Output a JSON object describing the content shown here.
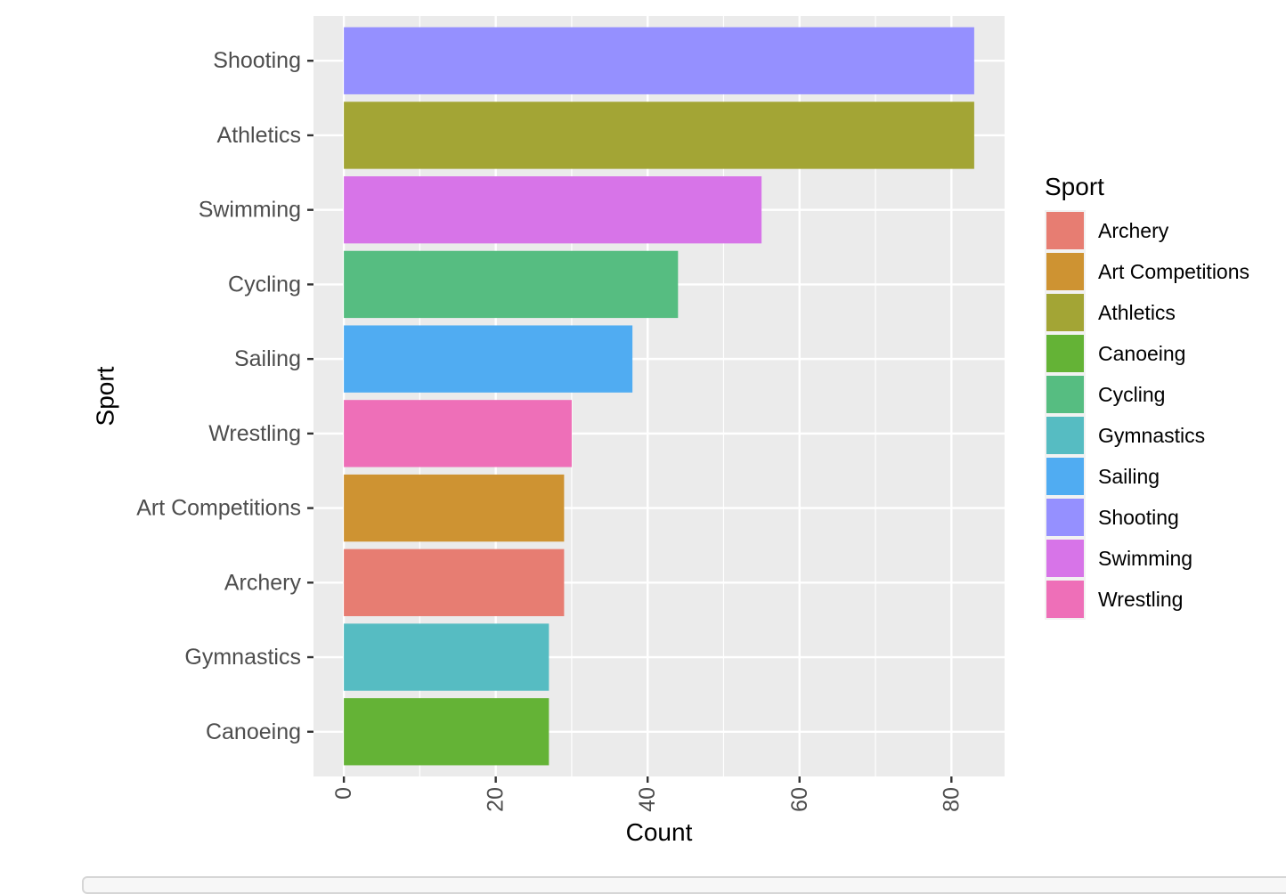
{
  "chart_data": {
    "type": "bar",
    "orientation": "horizontal",
    "categories": [
      "Canoeing",
      "Gymnastics",
      "Archery",
      "Art Competitions",
      "Wrestling",
      "Sailing",
      "Cycling",
      "Swimming",
      "Athletics",
      "Shooting"
    ],
    "values": [
      27,
      27,
      29,
      29,
      30,
      38,
      44,
      55,
      83,
      83
    ],
    "colors": [
      "#64B336",
      "#56BCC2",
      "#E77D72",
      "#CE9332",
      "#EE6FB8",
      "#50ACF2",
      "#56BD81",
      "#D774E8",
      "#A3A535",
      "#9590FF"
    ],
    "xlabel": "Count",
    "ylabel": "Sport",
    "xlim": [
      -4,
      87
    ],
    "xticks": [
      0,
      20,
      40,
      60,
      80
    ],
    "xtick_labels": [
      "0",
      "20",
      "40",
      "60",
      "80"
    ],
    "grid": true,
    "legend": {
      "title": "Sport",
      "position": "right",
      "entries": [
        "Archery",
        "Art Competitions",
        "Athletics",
        "Canoeing",
        "Cycling",
        "Gymnastics",
        "Sailing",
        "Shooting",
        "Swimming",
        "Wrestling"
      ],
      "colors": [
        "#E77D72",
        "#CE9332",
        "#A3A535",
        "#64B336",
        "#56BD81",
        "#56BCC2",
        "#50ACF2",
        "#9590FF",
        "#D774E8",
        "#EE6FB8"
      ]
    }
  }
}
